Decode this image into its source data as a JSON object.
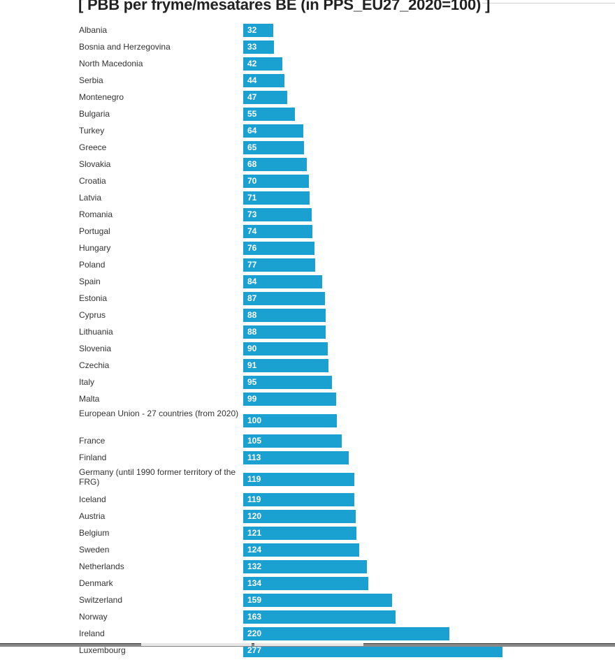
{
  "chart_data": {
    "type": "bar",
    "orientation": "horizontal",
    "title": "[ PBB per fryme/mesatares BE (in PPS_EU27_2020=100) ]",
    "xlabel": "",
    "ylabel": "",
    "xlim": [
      0,
      277
    ],
    "grid": false,
    "bar_color": "#1ba1d1",
    "categories": [
      "Albania",
      "Bosnia and Herzegovina",
      "North Macedonia",
      "Serbia",
      "Montenegro",
      "Bulgaria",
      "Turkey",
      "Greece",
      "Slovakia",
      "Croatia",
      "Latvia",
      "Romania",
      "Portugal",
      "Hungary",
      "Poland",
      "Spain",
      "Estonia",
      "Cyprus",
      "Lithuania",
      "Slovenia",
      "Czechia",
      "Italy",
      "Malta",
      "European Union - 27 countries (from 2020)",
      "France",
      "Finland",
      "Germany (until 1990 former territory of the FRG)",
      "Iceland",
      "Austria",
      "Belgium",
      "Sweden",
      "Netherlands",
      "Denmark",
      "Switzerland",
      "Norway",
      "Ireland",
      "Luxembourg"
    ],
    "values": [
      32,
      33,
      42,
      44,
      47,
      55,
      64,
      65,
      68,
      70,
      71,
      73,
      74,
      76,
      77,
      84,
      87,
      88,
      88,
      90,
      91,
      95,
      99,
      100,
      105,
      113,
      119,
      119,
      120,
      121,
      124,
      132,
      134,
      159,
      163,
      220,
      277
    ]
  }
}
